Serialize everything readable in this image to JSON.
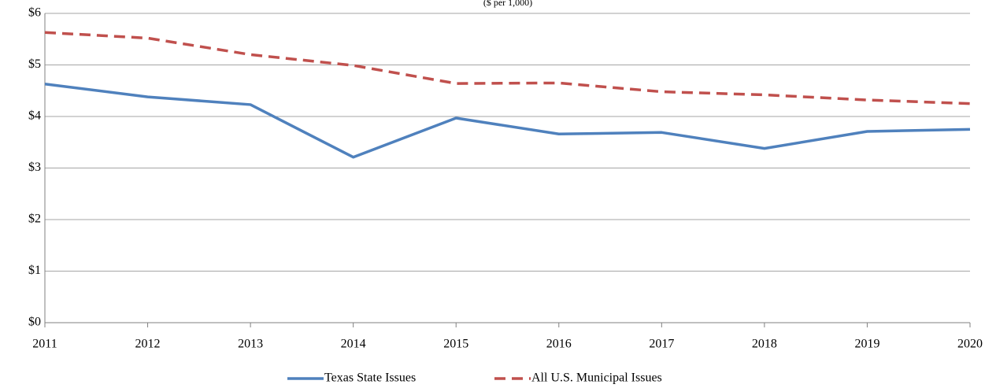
{
  "chart_data": {
    "type": "line",
    "subtitle": "($ per 1,000)",
    "categories": [
      "2011",
      "2012",
      "2013",
      "2014",
      "2015",
      "2016",
      "2017",
      "2018",
      "2019",
      "2020"
    ],
    "series": [
      {
        "name": "Texas State Issues",
        "color": "#4f81bd",
        "dash": "solid",
        "values": [
          4.63,
          4.38,
          4.23,
          3.21,
          3.97,
          3.66,
          3.69,
          3.38,
          3.71,
          3.75
        ]
      },
      {
        "name": "All U.S. Municipal Issues",
        "color": "#c0504d",
        "dash": "dashed",
        "values": [
          5.63,
          5.52,
          5.2,
          4.99,
          4.64,
          4.65,
          4.48,
          4.42,
          4.32,
          4.25
        ]
      }
    ],
    "ylim": [
      0,
      6
    ],
    "yticks": [
      {
        "value": 0,
        "label": "$0"
      },
      {
        "value": 1,
        "label": "$1"
      },
      {
        "value": 2,
        "label": "$2"
      },
      {
        "value": 3,
        "label": "$3"
      },
      {
        "value": 4,
        "label": "$4"
      },
      {
        "value": 5,
        "label": "$5"
      },
      {
        "value": 6,
        "label": "$6"
      }
    ],
    "grid": true,
    "legend": "bottom"
  }
}
